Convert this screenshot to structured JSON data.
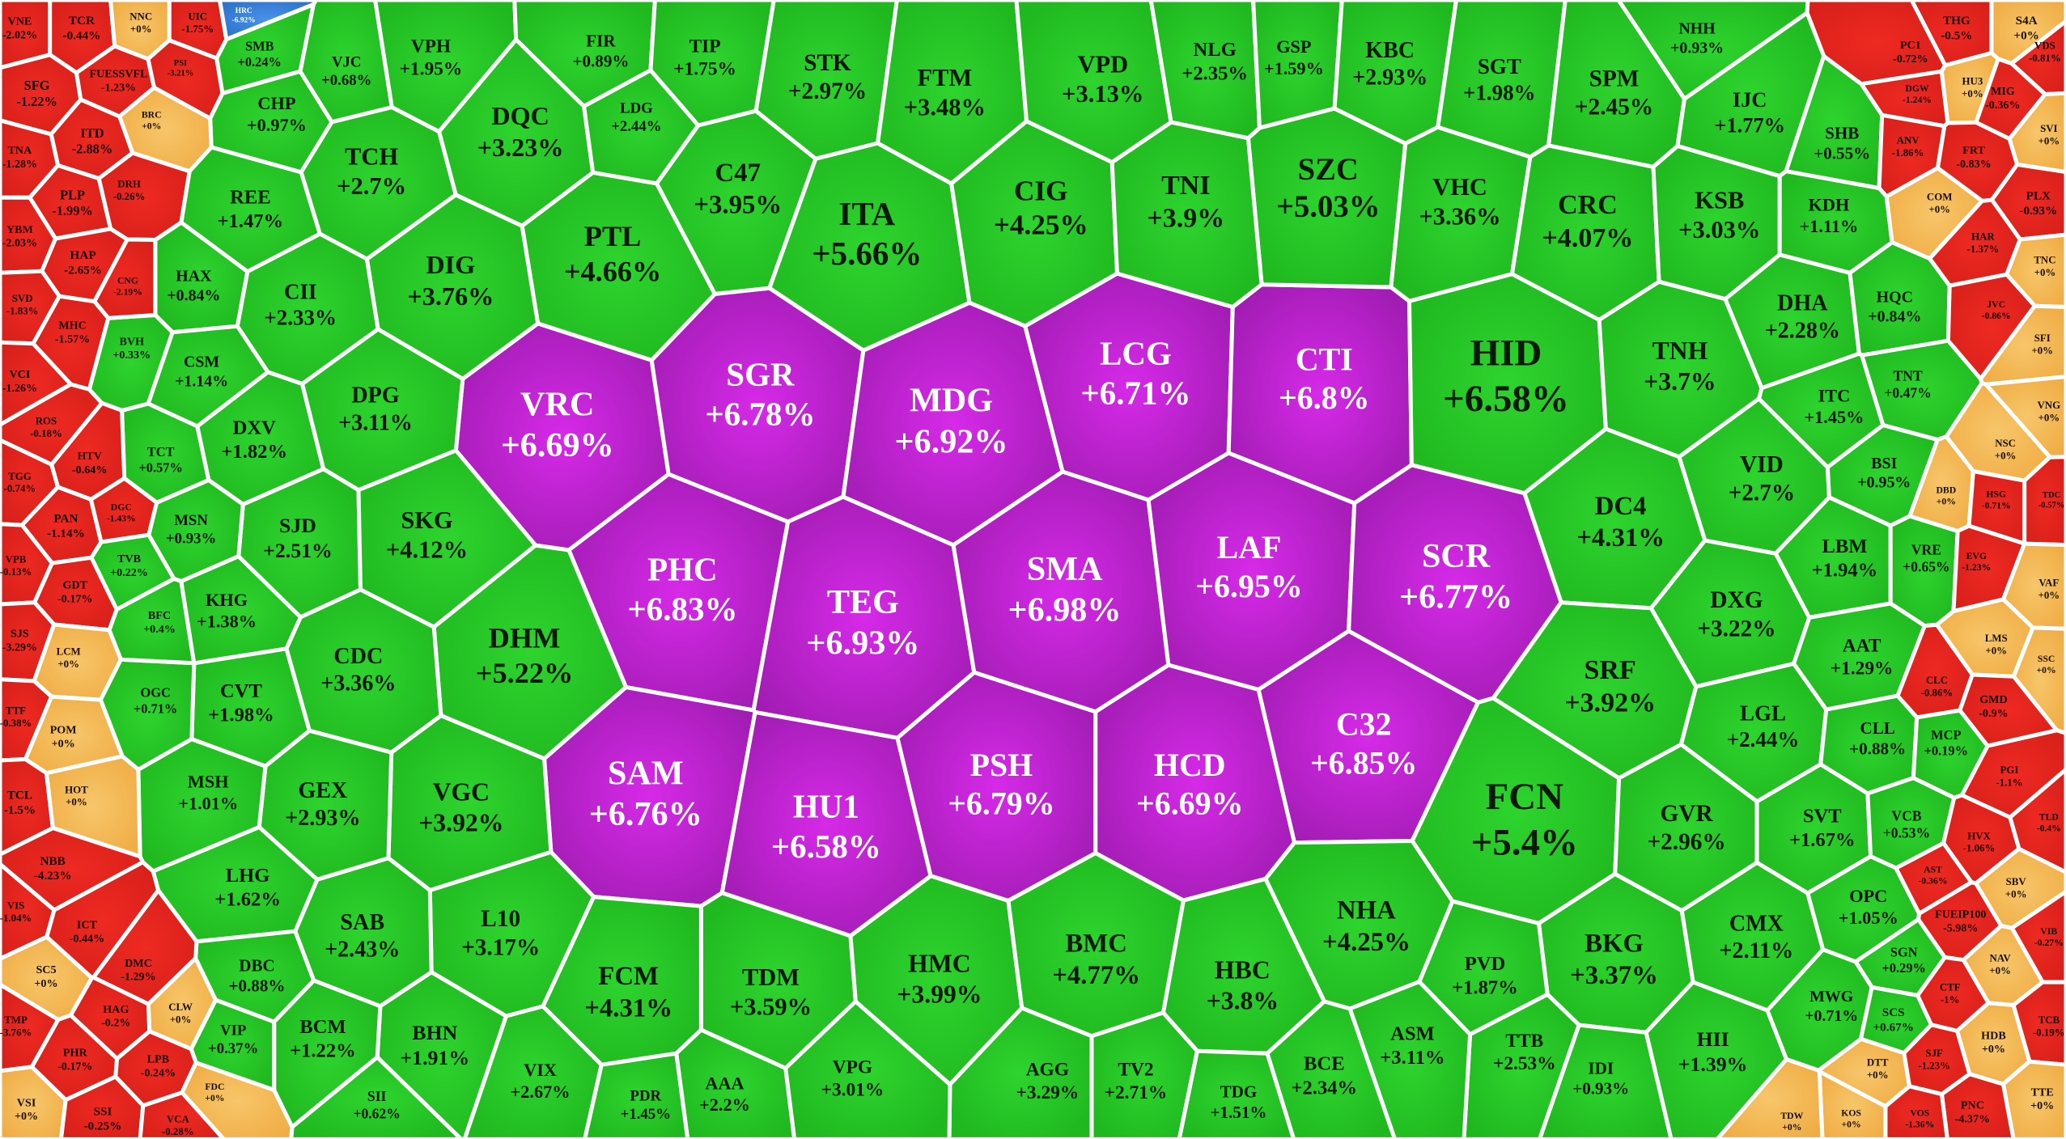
{
  "cells": [
    {
      "ticker": "VRC",
      "change": "+6.69%"
    },
    {
      "ticker": "SGR",
      "change": "+6.78%"
    },
    {
      "ticker": "MDG",
      "change": "+6.92%"
    },
    {
      "ticker": "LCG",
      "change": "+6.71%"
    },
    {
      "ticker": "CTI",
      "change": "+6.8%"
    },
    {
      "ticker": "PHC",
      "change": "+6.83%"
    },
    {
      "ticker": "TEG",
      "change": "+6.93%"
    },
    {
      "ticker": "SMA",
      "change": "+6.98%"
    },
    {
      "ticker": "LAF",
      "change": "+6.95%"
    },
    {
      "ticker": "SCR",
      "change": "+6.77%"
    },
    {
      "ticker": "SAM",
      "change": "+6.76%"
    },
    {
      "ticker": "HU1",
      "change": "+6.58%"
    },
    {
      "ticker": "PSH",
      "change": "+6.79%"
    },
    {
      "ticker": "HCD",
      "change": "+6.69%"
    },
    {
      "ticker": "C32",
      "change": "+6.85%"
    },
    {
      "ticker": "HID",
      "change": "+6.58%"
    },
    {
      "ticker": "FCN",
      "change": "+5.4%"
    },
    {
      "ticker": "ITA",
      "change": "+5.66%"
    },
    {
      "ticker": "SZC",
      "change": "+5.03%"
    },
    {
      "ticker": "DHM",
      "change": "+5.22%"
    },
    {
      "ticker": "PTL",
      "change": "+4.66%"
    },
    {
      "ticker": "DIG",
      "change": "+3.76%"
    },
    {
      "ticker": "DQC",
      "change": "+3.23%"
    },
    {
      "ticker": "TCH",
      "change": "+2.7%"
    },
    {
      "ticker": "CIG",
      "change": "+4.25%"
    },
    {
      "ticker": "TNI",
      "change": "+3.9%"
    },
    {
      "ticker": "C47",
      "change": "+3.95%"
    },
    {
      "ticker": "STK",
      "change": "+2.97%"
    },
    {
      "ticker": "FTM",
      "change": "+3.48%"
    },
    {
      "ticker": "VPD",
      "change": "+3.13%"
    },
    {
      "ticker": "NLG",
      "change": "+2.35%"
    },
    {
      "ticker": "GSP",
      "change": "+1.59%"
    },
    {
      "ticker": "KBC",
      "change": "+2.93%"
    },
    {
      "ticker": "SGT",
      "change": "+1.98%"
    },
    {
      "ticker": "SPM",
      "change": "+2.45%"
    },
    {
      "ticker": "IJC",
      "change": "+1.77%"
    },
    {
      "ticker": "NHH",
      "change": "+0.93%"
    },
    {
      "ticker": "VHC",
      "change": "+3.36%"
    },
    {
      "ticker": "CRC",
      "change": "+4.07%"
    },
    {
      "ticker": "KSB",
      "change": "+3.03%"
    },
    {
      "ticker": "TNH",
      "change": "+3.7%"
    },
    {
      "ticker": "DC4",
      "change": "+4.31%"
    },
    {
      "ticker": "SRF",
      "change": "+3.92%"
    },
    {
      "ticker": "DXG",
      "change": "+3.22%"
    },
    {
      "ticker": "VID",
      "change": "+2.7%"
    },
    {
      "ticker": "DHA",
      "change": "+2.28%"
    },
    {
      "ticker": "KDH",
      "change": "+1.11%"
    },
    {
      "ticker": "SHB",
      "change": "+0.55%"
    },
    {
      "ticker": "HQC",
      "change": "+0.84%"
    },
    {
      "ticker": "TNT",
      "change": "+0.47%"
    },
    {
      "ticker": "ITC",
      "change": "+1.45%"
    },
    {
      "ticker": "BSI",
      "change": "+0.95%"
    },
    {
      "ticker": "LBM",
      "change": "+1.94%"
    },
    {
      "ticker": "VRE",
      "change": "+0.65%"
    },
    {
      "ticker": "AAT",
      "change": "+1.29%"
    },
    {
      "ticker": "LGL",
      "change": "+2.44%"
    },
    {
      "ticker": "CLL",
      "change": "+0.88%"
    },
    {
      "ticker": "MCP",
      "change": "+0.19%"
    },
    {
      "ticker": "GVR",
      "change": "+2.96%"
    },
    {
      "ticker": "SVT",
      "change": "+1.67%"
    },
    {
      "ticker": "VCB",
      "change": "+0.53%"
    },
    {
      "ticker": "CMX",
      "change": "+2.11%"
    },
    {
      "ticker": "OPC",
      "change": "+1.05%"
    },
    {
      "ticker": "SGN",
      "change": "+0.29%"
    },
    {
      "ticker": "BKG",
      "change": "+3.37%"
    },
    {
      "ticker": "HII",
      "change": "+1.39%"
    },
    {
      "ticker": "MWG",
      "change": "+0.71%"
    },
    {
      "ticker": "SCS",
      "change": "+0.67%"
    },
    {
      "ticker": "PVD",
      "change": "+1.87%"
    },
    {
      "ticker": "NHA",
      "change": "+4.25%"
    },
    {
      "ticker": "HBC",
      "change": "+3.8%"
    },
    {
      "ticker": "BMC",
      "change": "+4.77%"
    },
    {
      "ticker": "HMC",
      "change": "+3.99%"
    },
    {
      "ticker": "TDM",
      "change": "+3.59%"
    },
    {
      "ticker": "FCM",
      "change": "+4.31%"
    },
    {
      "ticker": "L10",
      "change": "+3.17%"
    },
    {
      "ticker": "VGC",
      "change": "+3.92%"
    },
    {
      "ticker": "GEX",
      "change": "+2.93%"
    },
    {
      "ticker": "SAB",
      "change": "+2.43%"
    },
    {
      "ticker": "BHN",
      "change": "+1.91%"
    },
    {
      "ticker": "VIX",
      "change": "+2.67%"
    },
    {
      "ticker": "TTB",
      "change": "+2.53%"
    },
    {
      "ticker": "IDI",
      "change": "+0.93%"
    },
    {
      "ticker": "ASM",
      "change": "+3.11%"
    },
    {
      "ticker": "BCE",
      "change": "+2.34%"
    },
    {
      "ticker": "TDG",
      "change": "+1.51%"
    },
    {
      "ticker": "TV2",
      "change": "+2.71%"
    },
    {
      "ticker": "AGG",
      "change": "+3.29%"
    },
    {
      "ticker": "VPG",
      "change": "+3.01%"
    },
    {
      "ticker": "AAA",
      "change": "+2.2%"
    },
    {
      "ticker": "PDR",
      "change": "+1.45%"
    },
    {
      "ticker": "BCM",
      "change": "+1.22%"
    },
    {
      "ticker": "LHG",
      "change": "+1.62%"
    },
    {
      "ticker": "DBC",
      "change": "+0.88%"
    },
    {
      "ticker": "VIP",
      "change": "+0.37%"
    },
    {
      "ticker": "MSH",
      "change": "+1.01%"
    },
    {
      "ticker": "CVT",
      "change": "+1.98%"
    },
    {
      "ticker": "KHG",
      "change": "+1.38%"
    },
    {
      "ticker": "SJD",
      "change": "+2.51%"
    },
    {
      "ticker": "SKG",
      "change": "+4.12%"
    },
    {
      "ticker": "CDC",
      "change": "+3.36%"
    },
    {
      "ticker": "DXV",
      "change": "+1.82%"
    },
    {
      "ticker": "DPG",
      "change": "+3.11%"
    },
    {
      "ticker": "CII",
      "change": "+2.33%"
    },
    {
      "ticker": "REE",
      "change": "+1.47%"
    },
    {
      "ticker": "HAX",
      "change": "+0.84%"
    },
    {
      "ticker": "CSM",
      "change": "+1.14%"
    },
    {
      "ticker": "MSN",
      "change": "+0.93%"
    },
    {
      "ticker": "TCT",
      "change": "+0.57%"
    },
    {
      "ticker": "CHP",
      "change": "+0.97%"
    },
    {
      "ticker": "VJC",
      "change": "+0.68%"
    },
    {
      "ticker": "VPH",
      "change": "+1.95%"
    },
    {
      "ticker": "FIR",
      "change": "+0.89%"
    },
    {
      "ticker": "TIP",
      "change": "+1.75%"
    },
    {
      "ticker": "LDG",
      "change": "+2.44%"
    },
    {
      "ticker": "SMB",
      "change": "+0.24%"
    },
    {
      "ticker": "OGC",
      "change": "+0.71%"
    },
    {
      "ticker": "TVB",
      "change": "+0.22%"
    },
    {
      "ticker": "BFC",
      "change": "+0.4%"
    },
    {
      "ticker": "SII",
      "change": "+0.62%"
    },
    {
      "ticker": "BVH",
      "change": "+0.33%"
    },
    {
      "ticker": "VNE",
      "change": "-2.02%"
    },
    {
      "ticker": "TCR",
      "change": "-0.44%"
    },
    {
      "ticker": "UIC",
      "change": "-1.75%"
    },
    {
      "ticker": "NNC",
      "change": "+0%"
    },
    {
      "ticker": "SFG",
      "change": "-1.22%"
    },
    {
      "ticker": "FUESSVFL",
      "change": "-1.23%"
    },
    {
      "ticker": "PSI",
      "change": "-3.21%"
    },
    {
      "ticker": "BRC",
      "change": "+0%"
    },
    {
      "ticker": "ITD",
      "change": "-2.88%"
    },
    {
      "ticker": "TNA",
      "change": "-1.28%"
    },
    {
      "ticker": "PLP",
      "change": "-1.99%"
    },
    {
      "ticker": "DRH",
      "change": "-0.26%"
    },
    {
      "ticker": "YBM",
      "change": "-2.03%"
    },
    {
      "ticker": "HAP",
      "change": "-2.65%"
    },
    {
      "ticker": "CNG",
      "change": "-2.19%"
    },
    {
      "ticker": "SVD",
      "change": "-1.83%"
    },
    {
      "ticker": "MHC",
      "change": "-1.57%"
    },
    {
      "ticker": "VCI",
      "change": "-1.26%"
    },
    {
      "ticker": "ROS",
      "change": "-0.18%"
    },
    {
      "ticker": "HTV",
      "change": "-0.64%"
    },
    {
      "ticker": "TGG",
      "change": "-0.74%"
    },
    {
      "ticker": "PAN",
      "change": "-1.14%"
    },
    {
      "ticker": "DGC",
      "change": "-1.43%"
    },
    {
      "ticker": "VPB",
      "change": "-0.13%"
    },
    {
      "ticker": "GDT",
      "change": "-0.17%"
    },
    {
      "ticker": "SJS",
      "change": "-3.29%"
    },
    {
      "ticker": "LCM",
      "change": "+0%"
    },
    {
      "ticker": "TTF",
      "change": "-0.38%"
    },
    {
      "ticker": "POM",
      "change": "+0%"
    },
    {
      "ticker": "TCL",
      "change": "-1.5%"
    },
    {
      "ticker": "HOT",
      "change": "+0%"
    },
    {
      "ticker": "NBB",
      "change": "-4.23%"
    },
    {
      "ticker": "VIS",
      "change": "-1.04%"
    },
    {
      "ticker": "ICT",
      "change": "-0.44%"
    },
    {
      "ticker": "DMC",
      "change": "-1.29%"
    },
    {
      "ticker": "SC5",
      "change": "+0%"
    },
    {
      "ticker": "HAG",
      "change": "-0.2%"
    },
    {
      "ticker": "CLW",
      "change": "+0%"
    },
    {
      "ticker": "TMP",
      "change": "-3.76%"
    },
    {
      "ticker": "PHR",
      "change": "-0.17%"
    },
    {
      "ticker": "LPB",
      "change": "-0.24%"
    },
    {
      "ticker": "VSI",
      "change": "+0%"
    },
    {
      "ticker": "SSI",
      "change": "-0.25%"
    },
    {
      "ticker": "VCA",
      "change": "-0.28%"
    },
    {
      "ticker": "FDC",
      "change": "+0%"
    },
    {
      "ticker": "HRC",
      "change": "-6.92%"
    },
    {
      "ticker": "THG",
      "change": "-0.5%"
    },
    {
      "ticker": "S4A",
      "change": "+0%"
    },
    {
      "ticker": "VDS",
      "change": "-0.81%"
    },
    {
      "ticker": "PC1",
      "change": "-0.72%"
    },
    {
      "ticker": "HU3",
      "change": "+0%"
    },
    {
      "ticker": "MIG",
      "change": "-0.36%"
    },
    {
      "ticker": "DGW",
      "change": "-1.24%"
    },
    {
      "ticker": "ANV",
      "change": "-1.86%"
    },
    {
      "ticker": "FRT",
      "change": "-0.83%"
    },
    {
      "ticker": "SVI",
      "change": "+0%"
    },
    {
      "ticker": "COM",
      "change": "+0%"
    },
    {
      "ticker": "PLX",
      "change": "-0.93%"
    },
    {
      "ticker": "HAR",
      "change": "-1.37%"
    },
    {
      "ticker": "TNC",
      "change": "+0%"
    },
    {
      "ticker": "JVC",
      "change": "-0.86%"
    },
    {
      "ticker": "SFI",
      "change": "+0%"
    },
    {
      "ticker": "VNG",
      "change": "+0%"
    },
    {
      "ticker": "NSC",
      "change": "+0%"
    },
    {
      "ticker": "DBD",
      "change": "+0%"
    },
    {
      "ticker": "HSG",
      "change": "-0.71%"
    },
    {
      "ticker": "TDC",
      "change": "-0.57%"
    },
    {
      "ticker": "EVG",
      "change": "-1.23%"
    },
    {
      "ticker": "VAF",
      "change": "+0%"
    },
    {
      "ticker": "LMS",
      "change": "+0%"
    },
    {
      "ticker": "SSC",
      "change": "+0%"
    },
    {
      "ticker": "CLC",
      "change": "-0.86%"
    },
    {
      "ticker": "GMD",
      "change": "-0.9%"
    },
    {
      "ticker": "PGI",
      "change": "-1.1%"
    },
    {
      "ticker": "TLD",
      "change": "-0.4%"
    },
    {
      "ticker": "HVX",
      "change": "-1.06%"
    },
    {
      "ticker": "AST",
      "change": "-0.36%"
    },
    {
      "ticker": "SBV",
      "change": "+0%"
    },
    {
      "ticker": "FUEIP100",
      "change": "-5.98%"
    },
    {
      "ticker": "VIB",
      "change": "-0.27%"
    },
    {
      "ticker": "NAV",
      "change": "+0%"
    },
    {
      "ticker": "CTF",
      "change": "-1%"
    },
    {
      "ticker": "TCB",
      "change": "-0.19%"
    },
    {
      "ticker": "HDB",
      "change": "+0%"
    },
    {
      "ticker": "SJF",
      "change": "-1.23%"
    },
    {
      "ticker": "DTT",
      "change": "+0%"
    },
    {
      "ticker": "TTE",
      "change": "+0%"
    },
    {
      "ticker": "PNC",
      "change": "-4.37%"
    },
    {
      "ticker": "VOS",
      "change": "-1.36%"
    },
    {
      "ticker": "KOS",
      "change": "+0%"
    },
    {
      "ticker": "TDW",
      "change": "+0%"
    }
  ]
}
